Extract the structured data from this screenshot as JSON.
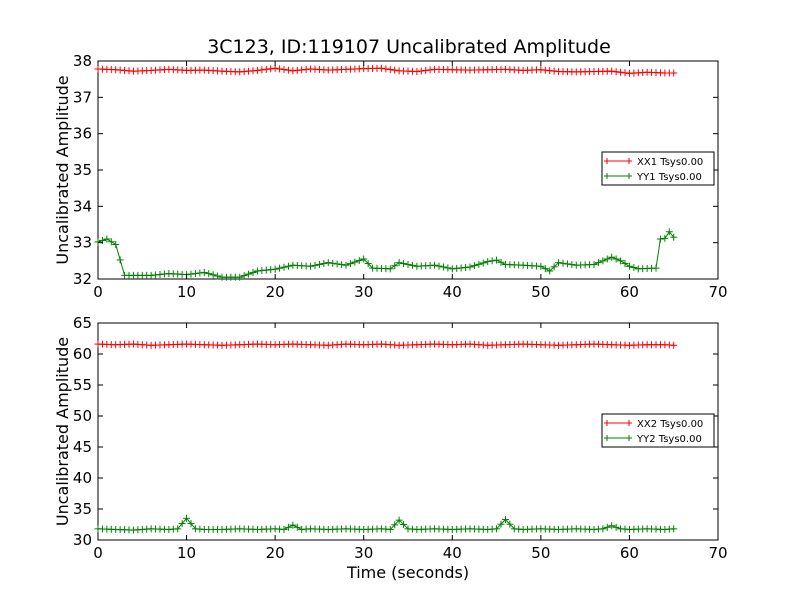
{
  "chart_data": [
    {
      "type": "line",
      "title": "3C123, ID:119107 Uncalibrated Amplitude",
      "xlabel": "",
      "ylabel": "Uncalibrated Amplitude",
      "xlim": [
        0,
        70
      ],
      "ylim": [
        32,
        38
      ],
      "xticks": [
        "0",
        "10",
        "20",
        "30",
        "40",
        "50",
        "60",
        "70"
      ],
      "yticks": [
        "32",
        "33",
        "34",
        "35",
        "36",
        "37",
        "38"
      ],
      "grid": false,
      "legend_position": "right",
      "series": [
        {
          "name": "XX1 Tsys0.00",
          "color": "#ff0000",
          "marker": "+",
          "x": [
            0,
            2,
            4,
            6,
            8,
            10,
            12,
            14,
            16,
            18,
            20,
            22,
            24,
            26,
            28,
            30,
            32,
            34,
            36,
            38,
            40,
            42,
            44,
            46,
            48,
            50,
            52,
            54,
            56,
            58,
            60,
            62,
            64,
            65
          ],
          "y": [
            37.78,
            37.76,
            37.72,
            37.74,
            37.77,
            37.74,
            37.75,
            37.72,
            37.7,
            37.74,
            37.8,
            37.73,
            37.78,
            37.75,
            37.77,
            37.79,
            37.8,
            37.73,
            37.71,
            37.77,
            37.76,
            37.75,
            37.76,
            37.77,
            37.74,
            37.76,
            37.71,
            37.7,
            37.71,
            37.72,
            37.66,
            37.69,
            37.67,
            37.67
          ]
        },
        {
          "name": "YY1 Tsys0.00",
          "color": "#008000",
          "marker": "+",
          "x": [
            0,
            1,
            2,
            3,
            4,
            6,
            8,
            10,
            12,
            14,
            16,
            18,
            20,
            22,
            24,
            26,
            28,
            30,
            31,
            33,
            34,
            36,
            38,
            40,
            42,
            44,
            45,
            46,
            48,
            50,
            51,
            52,
            54,
            56,
            58,
            59,
            60,
            61,
            63,
            63.5,
            64,
            64.5,
            65
          ],
          "y": [
            33.02,
            33.1,
            32.95,
            32.1,
            32.1,
            32.1,
            32.15,
            32.12,
            32.18,
            32.05,
            32.05,
            32.22,
            32.27,
            32.38,
            32.35,
            32.45,
            32.38,
            32.55,
            32.3,
            32.28,
            32.45,
            32.35,
            32.38,
            32.28,
            32.33,
            32.48,
            32.52,
            32.4,
            32.38,
            32.35,
            32.22,
            32.45,
            32.38,
            32.4,
            32.6,
            32.5,
            32.35,
            32.28,
            32.3,
            33.1,
            33.12,
            33.3,
            33.15
          ]
        }
      ]
    },
    {
      "type": "line",
      "title": "",
      "xlabel": "Time (seconds)",
      "ylabel": "Uncalibrated Amplitude",
      "xlim": [
        0,
        70
      ],
      "ylim": [
        30,
        65
      ],
      "xticks": [
        "0",
        "10",
        "20",
        "30",
        "40",
        "50",
        "60",
        "70"
      ],
      "yticks": [
        "30",
        "35",
        "40",
        "45",
        "50",
        "55",
        "60",
        "65"
      ],
      "grid": false,
      "legend_position": "right",
      "series": [
        {
          "name": "XX2 Tsys0.00",
          "color": "#ff0000",
          "marker": "+",
          "x": [
            0,
            2,
            4,
            6,
            8,
            10,
            12,
            14,
            16,
            18,
            20,
            22,
            24,
            26,
            28,
            30,
            32,
            34,
            36,
            38,
            40,
            42,
            44,
            46,
            48,
            50,
            52,
            54,
            56,
            58,
            60,
            62,
            64,
            65
          ],
          "y": [
            61.6,
            61.5,
            61.6,
            61.4,
            61.5,
            61.6,
            61.5,
            61.4,
            61.5,
            61.6,
            61.5,
            61.6,
            61.5,
            61.4,
            61.6,
            61.5,
            61.6,
            61.4,
            61.5,
            61.6,
            61.5,
            61.6,
            61.4,
            61.5,
            61.6,
            61.5,
            61.4,
            61.5,
            61.6,
            61.5,
            61.4,
            61.5,
            61.5,
            61.4
          ]
        },
        {
          "name": "YY2 Tsys0.00",
          "color": "#008000",
          "marker": "+",
          "x": [
            0,
            2,
            4,
            6,
            8,
            9,
            10,
            11,
            12,
            14,
            16,
            18,
            20,
            21,
            22,
            23,
            24,
            26,
            28,
            30,
            32,
            33,
            34,
            35,
            36,
            38,
            40,
            42,
            44,
            45,
            46,
            47,
            48,
            50,
            52,
            54,
            56,
            57,
            58,
            59,
            60,
            62,
            64,
            65
          ],
          "y": [
            31.8,
            31.7,
            31.6,
            31.8,
            31.7,
            31.8,
            33.5,
            31.8,
            31.7,
            31.7,
            31.8,
            31.7,
            31.8,
            31.7,
            32.4,
            31.7,
            31.8,
            31.7,
            31.8,
            31.7,
            31.8,
            31.7,
            33.2,
            31.8,
            31.7,
            31.8,
            31.7,
            31.8,
            31.7,
            31.8,
            33.3,
            31.8,
            31.7,
            31.8,
            31.7,
            31.8,
            31.7,
            31.8,
            32.3,
            31.8,
            31.7,
            31.8,
            31.7,
            31.8
          ]
        }
      ]
    }
  ]
}
